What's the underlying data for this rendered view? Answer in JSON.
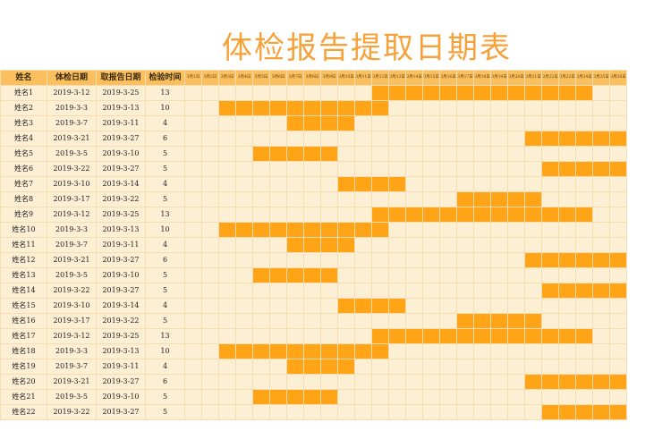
{
  "title": "体检报告提取日期表",
  "headers": {
    "name": "姓名",
    "exam_date": "体检日期",
    "pickup_date": "取报告日期",
    "duration": "检验时间"
  },
  "days": [
    "3月1日",
    "3月2日",
    "3月3日",
    "3月4日",
    "3月5日",
    "3月6日",
    "3月7日",
    "3月8日",
    "3月9日",
    "3月10日",
    "3月11日",
    "3月12日",
    "3月13日",
    "3月14日",
    "3月15日",
    "3月16日",
    "3月17日",
    "3月18日",
    "3月19日",
    "3月20日",
    "3月21日",
    "3月22日",
    "3月23日",
    "3月24日",
    "3月25日",
    "3月26日"
  ],
  "colors": {
    "header_bg": "#fbbf5d",
    "cell_bg": "#fdefd4",
    "bar": "#ffa317",
    "title": "#f5a23a",
    "grid": "#f4ddb0"
  },
  "rows": [
    {
      "name": "姓名1",
      "exam": "2019-3-12",
      "pickup": "2019-3-25",
      "duration": "13",
      "start": 12,
      "end": 25
    },
    {
      "name": "姓名2",
      "exam": "2019-3-3",
      "pickup": "2019-3-13",
      "duration": "10",
      "start": 3,
      "end": 13
    },
    {
      "name": "姓名3",
      "exam": "2019-3-7",
      "pickup": "2019-3-11",
      "duration": "4",
      "start": 7,
      "end": 11
    },
    {
      "name": "姓名4",
      "exam": "2019-3-21",
      "pickup": "2019-3-27",
      "duration": "6",
      "start": 21,
      "end": 27
    },
    {
      "name": "姓名5",
      "exam": "2019-3-5",
      "pickup": "2019-3-10",
      "duration": "5",
      "start": 5,
      "end": 10
    },
    {
      "name": "姓名6",
      "exam": "2019-3-22",
      "pickup": "2019-3-27",
      "duration": "5",
      "start": 22,
      "end": 27
    },
    {
      "name": "姓名7",
      "exam": "2019-3-10",
      "pickup": "2019-3-14",
      "duration": "4",
      "start": 10,
      "end": 14
    },
    {
      "name": "姓名8",
      "exam": "2019-3-17",
      "pickup": "2019-3-22",
      "duration": "5",
      "start": 17,
      "end": 22
    },
    {
      "name": "姓名9",
      "exam": "2019-3-12",
      "pickup": "2019-3-25",
      "duration": "13",
      "start": 12,
      "end": 25
    },
    {
      "name": "姓名10",
      "exam": "2019-3-3",
      "pickup": "2019-3-13",
      "duration": "10",
      "start": 3,
      "end": 13
    },
    {
      "name": "姓名11",
      "exam": "2019-3-7",
      "pickup": "2019-3-11",
      "duration": "4",
      "start": 7,
      "end": 11
    },
    {
      "name": "姓名12",
      "exam": "2019-3-21",
      "pickup": "2019-3-27",
      "duration": "6",
      "start": 21,
      "end": 27
    },
    {
      "name": "姓名13",
      "exam": "2019-3-5",
      "pickup": "2019-3-10",
      "duration": "5",
      "start": 5,
      "end": 10
    },
    {
      "name": "姓名14",
      "exam": "2019-3-22",
      "pickup": "2019-3-27",
      "duration": "5",
      "start": 22,
      "end": 27
    },
    {
      "name": "姓名15",
      "exam": "2019-3-10",
      "pickup": "2019-3-14",
      "duration": "4",
      "start": 10,
      "end": 14
    },
    {
      "name": "姓名16",
      "exam": "2019-3-17",
      "pickup": "2019-3-22",
      "duration": "5",
      "start": 17,
      "end": 22
    },
    {
      "name": "姓名17",
      "exam": "2019-3-12",
      "pickup": "2019-3-25",
      "duration": "13",
      "start": 12,
      "end": 25
    },
    {
      "name": "姓名18",
      "exam": "2019-3-3",
      "pickup": "2019-3-13",
      "duration": "10",
      "start": 3,
      "end": 13
    },
    {
      "name": "姓名19",
      "exam": "2019-3-7",
      "pickup": "2019-3-11",
      "duration": "4",
      "start": 7,
      "end": 11
    },
    {
      "name": "姓名20",
      "exam": "2019-3-21",
      "pickup": "2019-3-27",
      "duration": "6",
      "start": 21,
      "end": 27
    },
    {
      "name": "姓名21",
      "exam": "2019-3-5",
      "pickup": "2019-3-10",
      "duration": "5",
      "start": 5,
      "end": 10
    },
    {
      "name": "姓名22",
      "exam": "2019-3-22",
      "pickup": "2019-3-27",
      "duration": "5",
      "start": 22,
      "end": 27
    }
  ]
}
